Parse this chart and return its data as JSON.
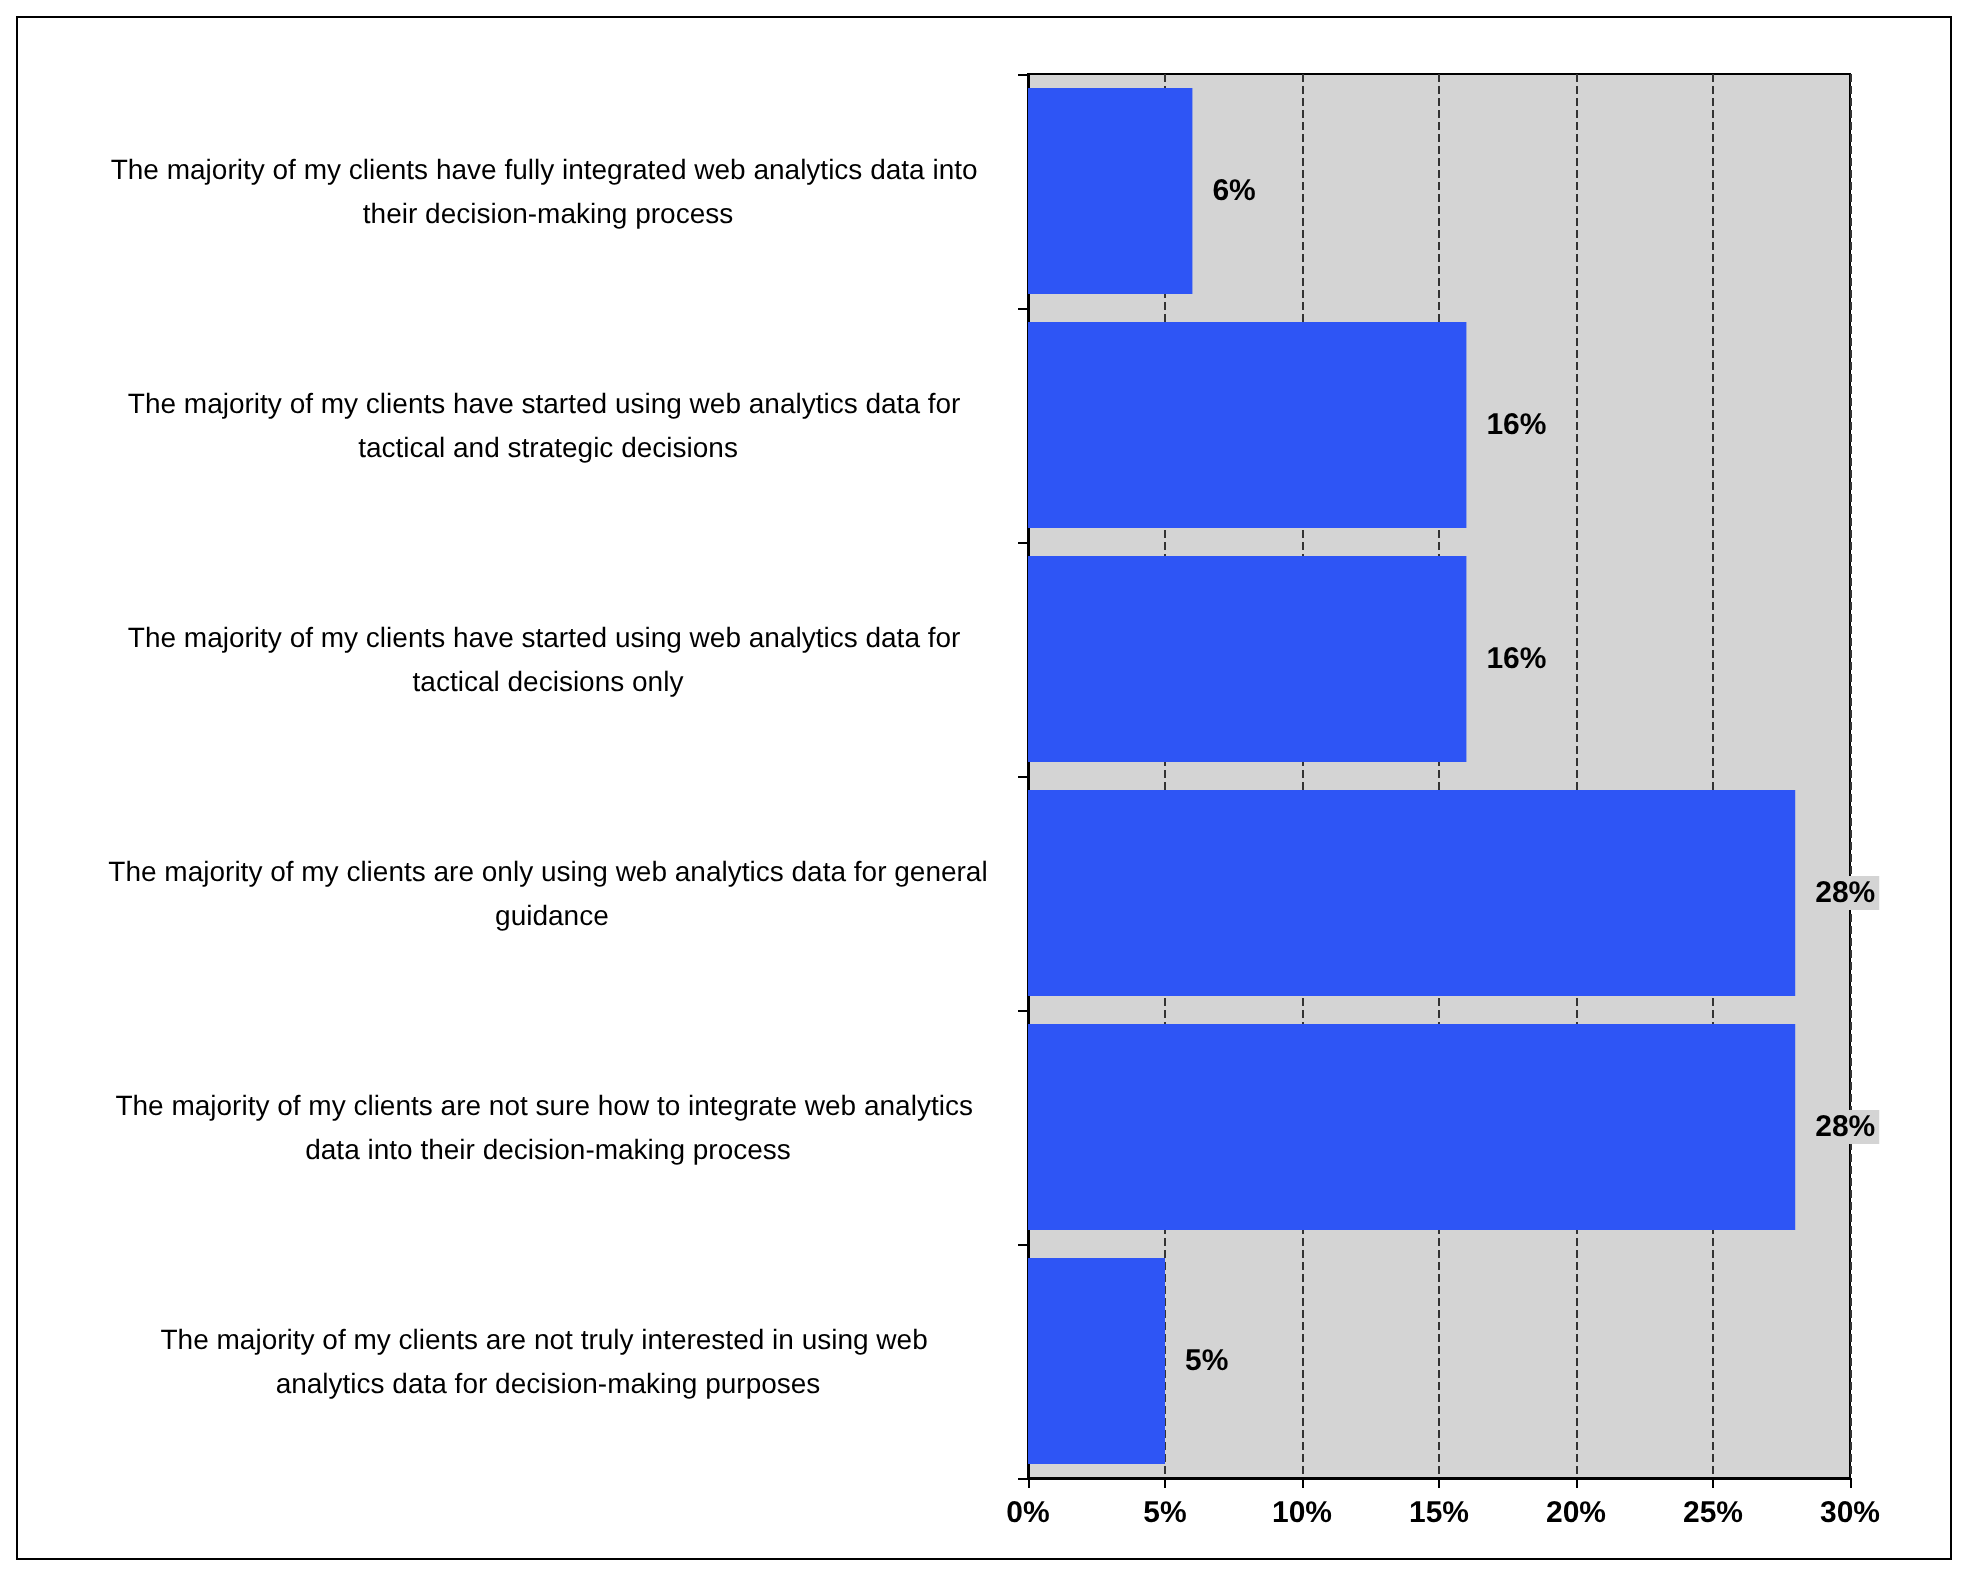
{
  "chart_data": {
    "type": "bar",
    "orientation": "horizontal",
    "categories": [
      "The majority of my clients have fully integrated web analytics data into their decision-making process",
      "The majority of my clients have started using web analytics data for tactical and strategic decisions",
      "The majority of my clients have started using web analytics data for tactical decisions only",
      "The majority of my clients are only using web analytics data for general guidance",
      "The majority of my clients are not sure how to integrate web analytics data into their decision-making process",
      "The majority of my clients are not truly interested in using web analytics data for decision-making purposes"
    ],
    "values": [
      6,
      16,
      16,
      28,
      28,
      5
    ],
    "value_labels": [
      "6%",
      "16%",
      "16%",
      "28%",
      "28%",
      "5%"
    ],
    "color": "#2e55f5",
    "xlim": [
      0,
      30
    ],
    "xticks": [
      {
        "value": 0,
        "label": "0%"
      },
      {
        "value": 5,
        "label": "5%"
      },
      {
        "value": 10,
        "label": "10%"
      },
      {
        "value": 15,
        "label": "15%"
      },
      {
        "value": 20,
        "label": "20%"
      },
      {
        "value": 25,
        "label": "25%"
      },
      {
        "value": 30,
        "label": "30%"
      }
    ],
    "grid": "x"
  }
}
